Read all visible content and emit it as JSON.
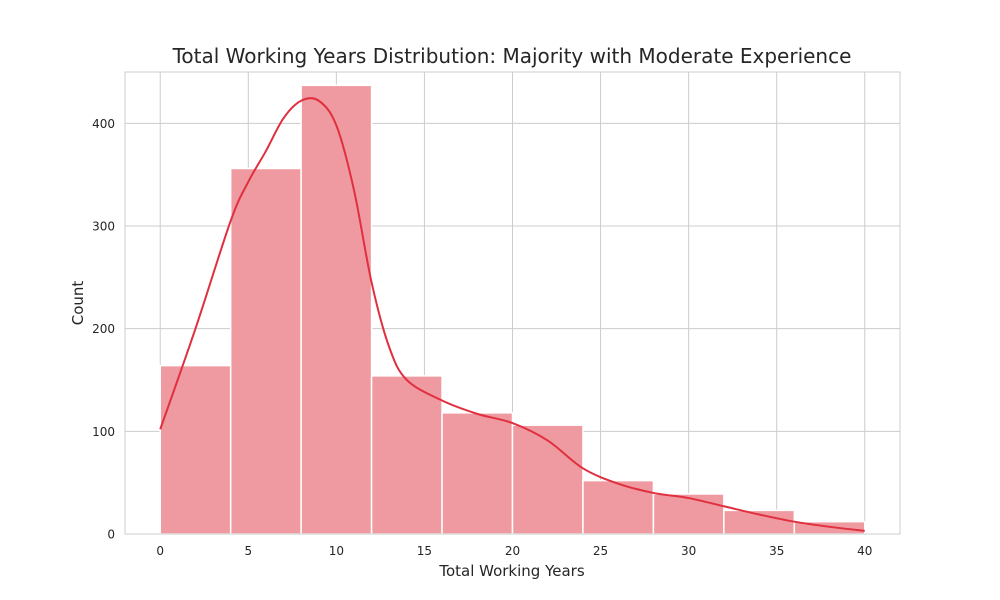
{
  "chart_data": {
    "type": "bar",
    "title": "Total Working Years Distribution: Majority with Moderate Experience",
    "xlabel": "Total Working Years",
    "ylabel": "Count",
    "xlim": [
      -2,
      42
    ],
    "ylim": [
      0,
      450
    ],
    "xticks": [
      0,
      5,
      10,
      15,
      20,
      25,
      30,
      35,
      40
    ],
    "yticks": [
      0,
      100,
      200,
      300,
      400
    ],
    "grid": true,
    "bins": [
      {
        "start": 0,
        "end": 4,
        "count": 164
      },
      {
        "start": 4,
        "end": 8,
        "count": 356
      },
      {
        "start": 8,
        "end": 12,
        "count": 437
      },
      {
        "start": 12,
        "end": 16,
        "count": 154
      },
      {
        "start": 16,
        "end": 20,
        "count": 118
      },
      {
        "start": 20,
        "end": 24,
        "count": 106
      },
      {
        "start": 24,
        "end": 28,
        "count": 52
      },
      {
        "start": 28,
        "end": 32,
        "count": 39
      },
      {
        "start": 32,
        "end": 36,
        "count": 23
      },
      {
        "start": 36,
        "end": 40,
        "count": 12
      }
    ],
    "kde": {
      "x": [
        0,
        2,
        4,
        5,
        6,
        7,
        8,
        9,
        10,
        11,
        12,
        13,
        14,
        16,
        18,
        20,
        22,
        24,
        26,
        28,
        30,
        32,
        34,
        36,
        38,
        40
      ],
      "y": [
        102,
        200,
        305,
        343,
        373,
        405,
        422,
        422,
        398,
        335,
        245,
        182,
        150,
        130,
        117,
        108,
        91,
        64,
        49,
        40,
        35,
        27,
        19,
        12,
        7,
        3
      ]
    },
    "colors": {
      "bar_fill": "#ef9aa0",
      "bar_edge": "#ffffff",
      "kde_line": "#e0303f",
      "grid": "#cccccc",
      "axes_edge": "#cccccc",
      "text": "#262626"
    }
  }
}
